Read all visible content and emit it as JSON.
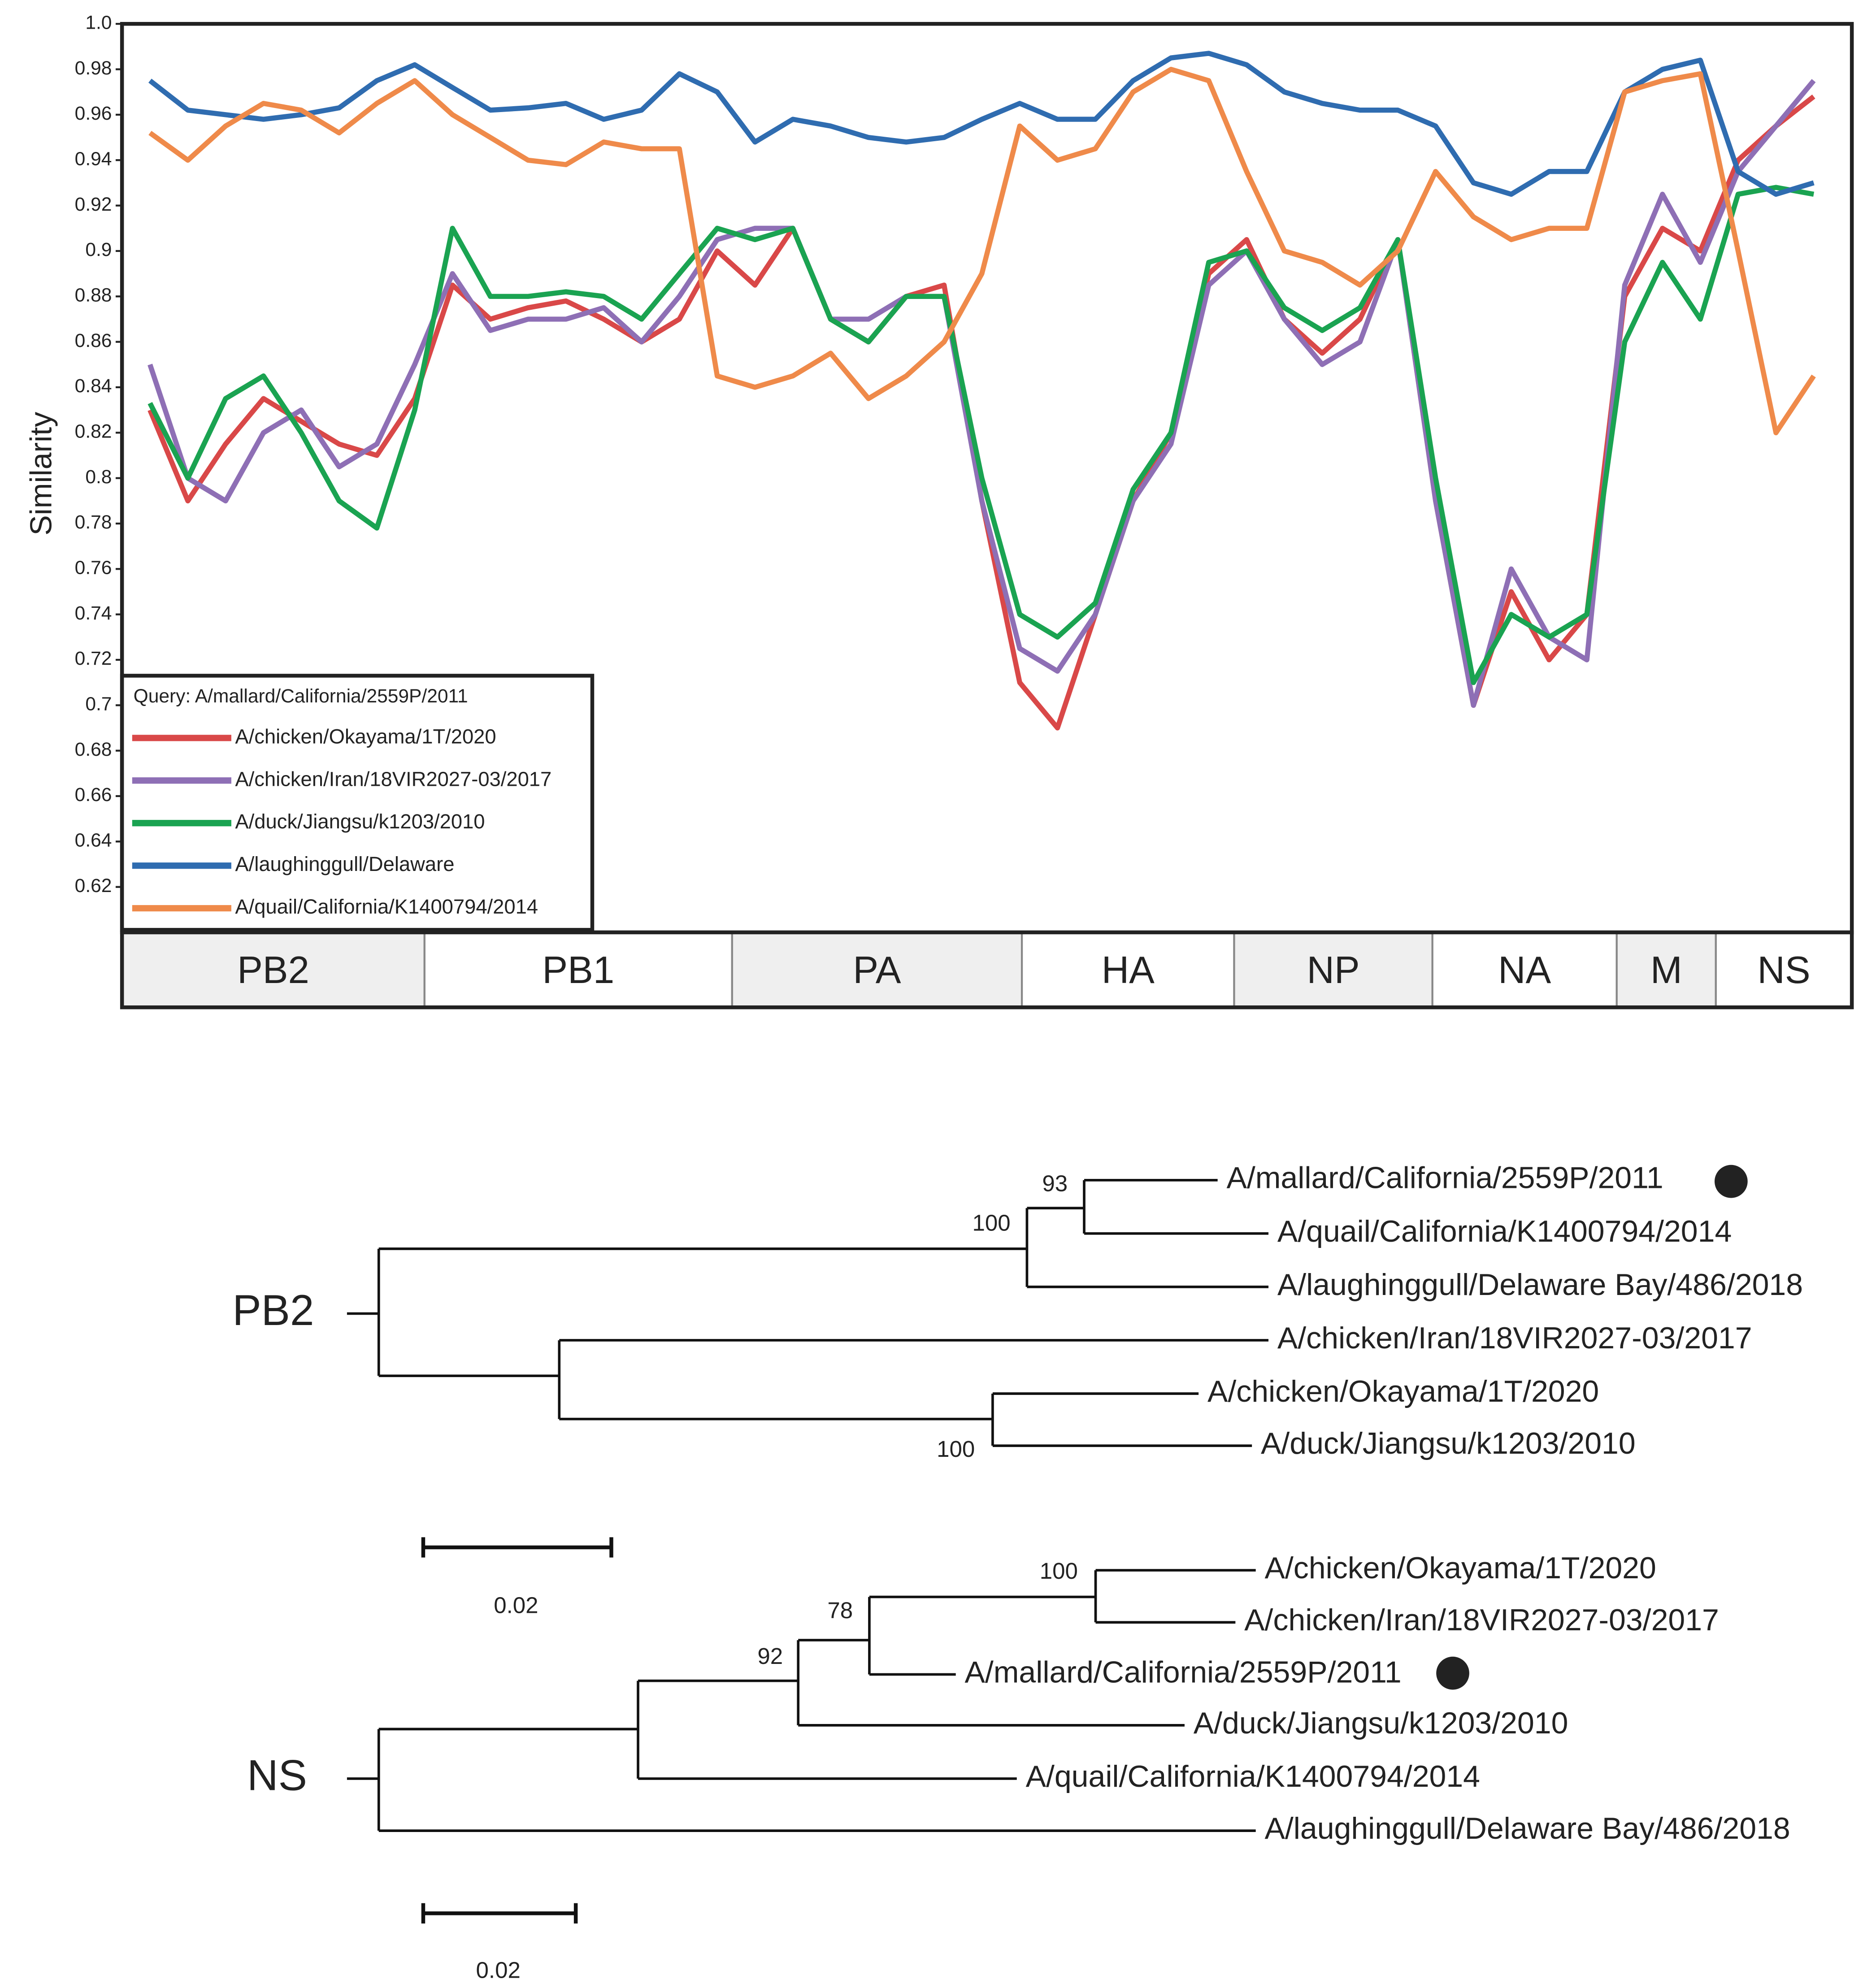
{
  "chart_data": {
    "type": "line",
    "ylabel": "Similarity",
    "legend_title": "Query: A/mallard/California/2559P/2011",
    "ylim": [
      0.6,
      1.0
    ],
    "yticks": [
      0.62,
      0.64,
      0.66,
      0.68,
      0.7,
      0.72,
      0.74,
      0.76,
      0.78,
      0.8,
      0.82,
      0.84,
      0.86,
      0.88,
      0.9,
      0.92,
      0.94,
      0.96,
      0.98,
      {
        "value": 1,
        "label": "1.0"
      }
    ],
    "segments": [
      "PB2",
      "PB1",
      "PA",
      "HA",
      "NP",
      "NA",
      "M",
      "NS"
    ],
    "series": [
      {
        "name": "A/chicken/Okayama/1T/2020",
        "color": "#d94848",
        "values": [
          0.83,
          0.79,
          0.815,
          0.835,
          0.825,
          0.815,
          0.81,
          0.835,
          0.885,
          0.87,
          0.875,
          0.878,
          0.87,
          0.86,
          0.87,
          0.9,
          0.885,
          0.91,
          0.87,
          0.86,
          0.88,
          0.885,
          0.79,
          0.71,
          0.69,
          0.74,
          0.79,
          0.82,
          0.89,
          0.905,
          0.87,
          0.855,
          0.87,
          0.905,
          0.79,
          0.7,
          0.75,
          0.72,
          0.74,
          0.88,
          0.91,
          0.9,
          0.94,
          0.955,
          0.968
        ]
      },
      {
        "name": "A/chicken/Iran/18VIR2027-03/2017",
        "color": "#8e6fb5",
        "values": [
          0.85,
          0.8,
          0.79,
          0.82,
          0.83,
          0.805,
          0.815,
          0.85,
          0.89,
          0.865,
          0.87,
          0.87,
          0.875,
          0.86,
          0.88,
          0.905,
          0.91,
          0.91,
          0.87,
          0.87,
          0.88,
          0.88,
          0.79,
          0.725,
          0.715,
          0.74,
          0.79,
          0.815,
          0.885,
          0.9,
          0.87,
          0.85,
          0.86,
          0.905,
          0.79,
          0.7,
          0.76,
          0.73,
          0.72,
          0.885,
          0.925,
          0.895,
          0.935,
          0.955,
          0.975
        ]
      },
      {
        "name": "A/duck/Jiangsu/k1203/2010",
        "color": "#1aa351",
        "values": [
          0.833,
          0.8,
          0.835,
          0.845,
          0.82,
          0.79,
          0.778,
          0.83,
          0.91,
          0.88,
          0.88,
          0.882,
          0.88,
          0.87,
          0.89,
          0.91,
          0.905,
          0.91,
          0.87,
          0.86,
          0.88,
          0.88,
          0.8,
          0.74,
          0.73,
          0.745,
          0.795,
          0.82,
          0.895,
          0.9,
          0.875,
          0.865,
          0.875,
          0.905,
          0.8,
          0.71,
          0.74,
          0.73,
          0.74,
          0.86,
          0.895,
          0.87,
          0.925,
          0.928,
          0.925
        ]
      },
      {
        "name": "A/laughinggull/Delaware",
        "color": "#2f6cb0",
        "values": [
          0.975,
          0.962,
          0.96,
          0.958,
          0.96,
          0.963,
          0.975,
          0.982,
          0.972,
          0.962,
          0.963,
          0.965,
          0.958,
          0.962,
          0.978,
          0.97,
          0.948,
          0.958,
          0.955,
          0.95,
          0.948,
          0.95,
          0.958,
          0.965,
          0.958,
          0.958,
          0.975,
          0.985,
          0.987,
          0.982,
          0.97,
          0.965,
          0.962,
          0.962,
          0.955,
          0.93,
          0.925,
          0.935,
          0.935,
          0.97,
          0.98,
          0.984,
          0.935,
          0.925,
          0.93
        ]
      },
      {
        "name": "A/quail/California/K1400794/2014",
        "color": "#ef8a4a",
        "values": [
          0.952,
          0.94,
          0.955,
          0.965,
          0.962,
          0.952,
          0.965,
          0.975,
          0.96,
          0.95,
          0.94,
          0.938,
          0.948,
          0.945,
          0.945,
          0.845,
          0.84,
          0.845,
          0.855,
          0.835,
          0.845,
          0.86,
          0.89,
          0.955,
          0.94,
          0.945,
          0.97,
          0.98,
          0.975,
          0.935,
          0.9,
          0.895,
          0.885,
          0.9,
          0.935,
          0.915,
          0.905,
          0.91,
          0.91,
          0.97,
          0.975,
          0.978,
          0.9,
          0.82,
          0.845
        ]
      }
    ]
  },
  "trees": [
    {
      "name": "PB2",
      "leaves": [
        "A/mallard/California/2559P/2011",
        "A/quail/California/K1400794/2014",
        "A/laughinggull/Delaware Bay/486/2018",
        "A/chicken/Iran/18VIR2027-03/2017",
        "A/chicken/Okayama/1T/2020",
        "A/duck/Jiangsu/k1203/2010"
      ],
      "support": [
        93,
        100,
        100
      ],
      "scale": 0.02
    },
    {
      "name": "NS",
      "leaves": [
        "A/chicken/Okayama/1T/2020",
        "A/chicken/Iran/18VIR2027-03/2017",
        "A/mallard/California/2559P/2011",
        "A/duck/Jiangsu/k1203/2010",
        "A/quail/California/K1400794/2014",
        "A/laughinggull/Delaware Bay/486/2018"
      ],
      "support": [
        100,
        78,
        92
      ],
      "scale": 0.02
    }
  ]
}
